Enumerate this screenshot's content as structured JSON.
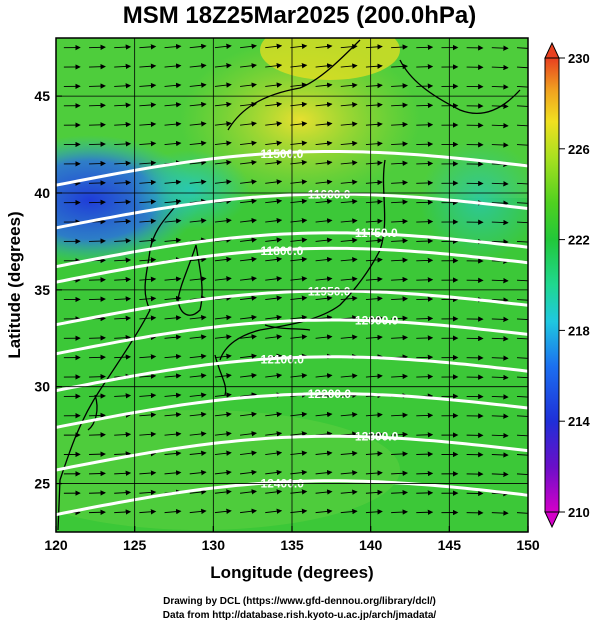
{
  "title": "MSM 18Z25Mar2025 (200.0hPa)",
  "x_axis": {
    "label": "Longitude (degrees)",
    "range": [
      120,
      150
    ],
    "ticks": [
      "120",
      "125",
      "130",
      "135",
      "140",
      "145",
      "150"
    ]
  },
  "y_axis": {
    "label": "Latitude  (degrees)",
    "range": [
      22.5,
      48
    ],
    "ticks": [
      "25",
      "30",
      "35",
      "40",
      "45"
    ]
  },
  "colorbar": {
    "range": [
      210,
      230
    ],
    "ticks": [
      "210",
      "214",
      "218",
      "222",
      "226",
      "230"
    ],
    "colors": [
      "#d400c8",
      "#6a0fc8",
      "#1f2fd8",
      "#1b6ff0",
      "#1fc8e0",
      "#1fd890",
      "#22c83a",
      "#4fd020",
      "#a8e020",
      "#f0e020",
      "#f0a020",
      "#e84020"
    ]
  },
  "contours": [
    {
      "label": "11500.0",
      "lat": 41.2
    },
    {
      "label": "11600.0",
      "lat": 39.0
    },
    {
      "label": "11750.0",
      "lat": 37.0
    },
    {
      "label": "11800.0",
      "lat": 36.2
    },
    {
      "label": "11950.0",
      "lat": 34.0
    },
    {
      "label": "12000.0",
      "lat": 32.5
    },
    {
      "label": "12100.0",
      "lat": 30.6
    },
    {
      "label": "12200.0",
      "lat": 28.7
    },
    {
      "label": "12300.0",
      "lat": 26.5
    },
    {
      "label": "12400.0",
      "lat": 24.2
    }
  ],
  "credits": {
    "line1": "Drawing by DCL (https://www.gfd-dennou.org/library/dcl/)",
    "line2": "Data from http://database.rish.kyoto-u.ac.jp/arch/jmadata/"
  }
}
